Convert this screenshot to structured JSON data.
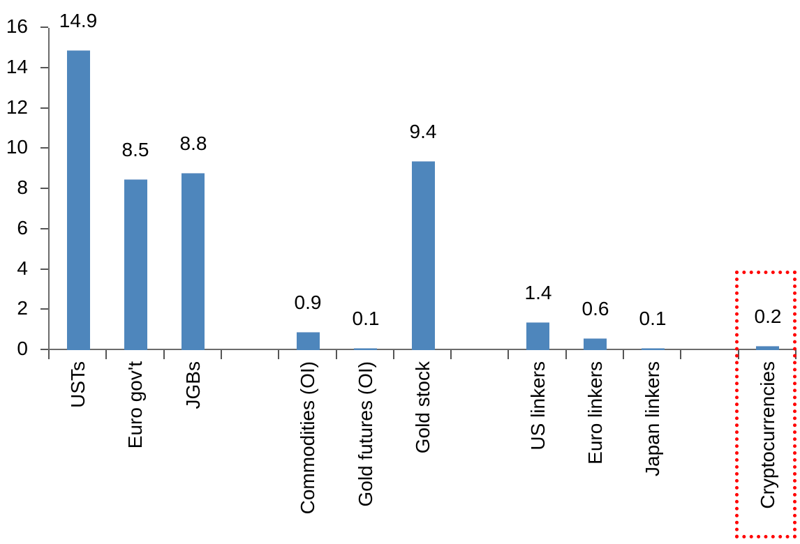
{
  "chart_data": {
    "type": "bar",
    "title": "",
    "xlabel": "",
    "ylabel": "",
    "categories": [
      "USTs",
      "Euro gov't",
      "JGBs",
      "Commodities (OI)",
      "Gold futures (OI)",
      "Gold stock",
      "US linkers",
      "Euro linkers",
      "Japan linkers",
      "Cryptocurrencies"
    ],
    "values": [
      14.9,
      8.5,
      8.8,
      0.9,
      0.1,
      9.4,
      1.4,
      0.6,
      0.1,
      0.2
    ],
    "value_labels": [
      "14.9",
      "8.5",
      "8.8",
      "0.9",
      "0.1",
      "9.4",
      "1.4",
      "0.6",
      "0.1",
      "0.2"
    ],
    "slots": [
      "USTs",
      "Euro gov't",
      "JGBs",
      "",
      "Commodities (OI)",
      "Gold futures (OI)",
      "Gold stock",
      "",
      "US linkers",
      "Euro linkers",
      "Japan linkers",
      "",
      "Cryptocurrencies"
    ],
    "ylim": [
      0,
      16
    ],
    "y_ticks": [
      0,
      2,
      4,
      6,
      8,
      10,
      12,
      14,
      16
    ],
    "y_tick_labels": [
      "0",
      "2",
      "4",
      "6",
      "8",
      "10",
      "12",
      "14",
      "16"
    ],
    "grid": false,
    "legend": null,
    "data_labels_shown": true,
    "x_labels_rotation_deg": 90,
    "colors": {
      "bar": "#4e86bc",
      "axis": "#6b6b6b",
      "tick": "#555555",
      "text": "#000000",
      "highlight_box": "#ff0000"
    },
    "highlight": {
      "category": "Cryptocurrencies",
      "style": "red-dotted-box"
    }
  }
}
